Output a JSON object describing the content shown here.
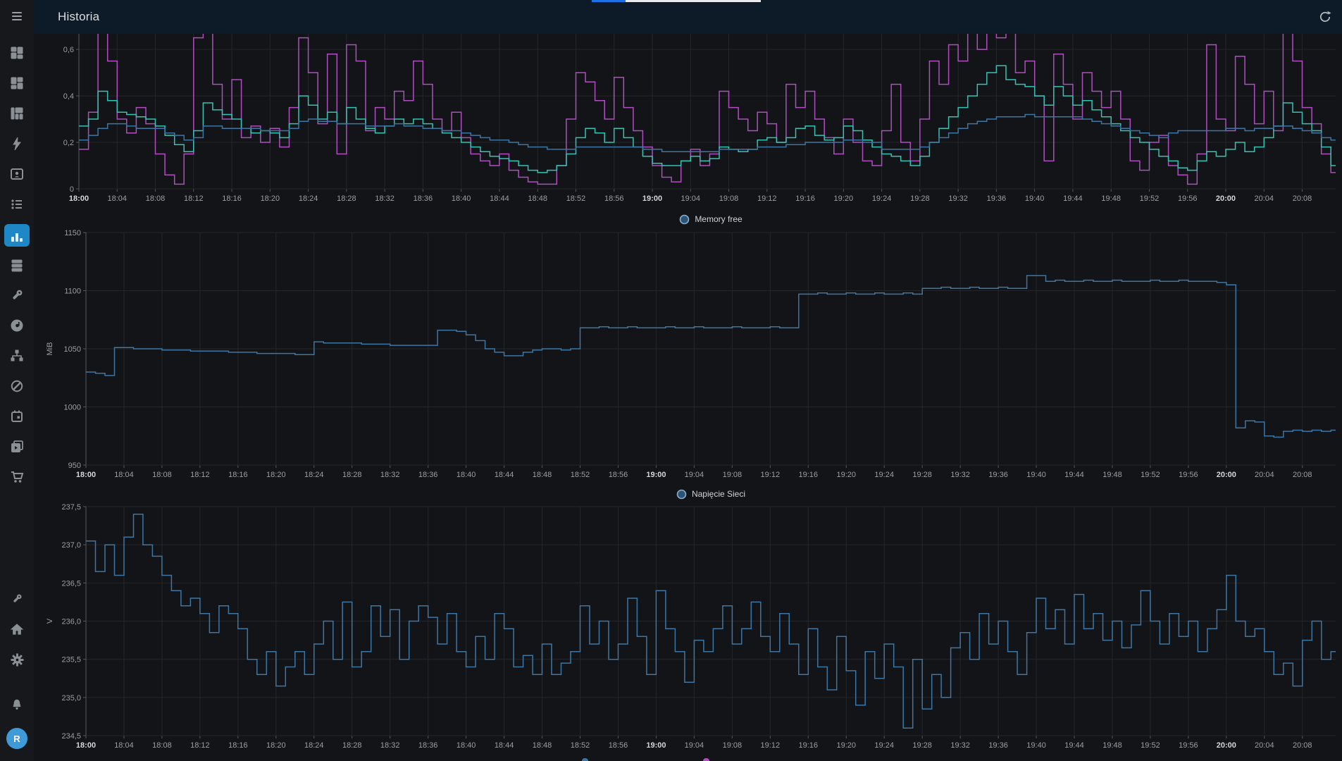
{
  "page": {
    "title": "Historia"
  },
  "user": {
    "initial": "R"
  },
  "colors": {
    "header_bg": "#0d1b28",
    "sidebar_bg": "#17181c",
    "content_bg": "#131418",
    "grid": "#242629",
    "axis": "#55595f",
    "text_dim": "#9a9fa5",
    "text_bright": "#d5d7d9",
    "series_purple": "#b04ebf",
    "series_cyan": "#35c3b4",
    "series_blue": "#3c76a5",
    "legend_circle_fill": "#2e5375",
    "legend_circle_stroke": "#83aed3",
    "active_item_bg": "#1e88c7",
    "avatar_bg": "#3f9bd8",
    "loadbar_blue": "#1a73e8",
    "loadbar_track": "#e8eaed"
  },
  "sidebar": {
    "icons": [
      "dashboard-grid-icon",
      "dashboard-grid-alt-icon",
      "panels-grid-icon",
      "lightning-icon",
      "user-card-icon",
      "bullet-list-icon",
      "bar-chart-icon-active",
      "server-stack-icon",
      "wrench-icon",
      "disc-icon",
      "sitemap-icon",
      "slash-circle-icon",
      "calendar-icon",
      "playlist-icon",
      "cart-icon",
      "tools-icon",
      "home-icon",
      "gear-icon",
      "bell-icon",
      "avatar"
    ]
  },
  "header": {
    "refresh_icon": "refresh"
  },
  "time_axis": {
    "total_minutes": 131.5,
    "ticks": [
      {
        "minute": 0,
        "label": "18:00",
        "bold": true
      },
      {
        "minute": 4,
        "label": "18:04",
        "bold": false
      },
      {
        "minute": 8,
        "label": "18:08",
        "bold": false
      },
      {
        "minute": 12,
        "label": "18:12",
        "bold": false
      },
      {
        "minute": 16,
        "label": "18:16",
        "bold": false
      },
      {
        "minute": 20,
        "label": "18:20",
        "bold": false
      },
      {
        "minute": 24,
        "label": "18:24",
        "bold": false
      },
      {
        "minute": 28,
        "label": "18:28",
        "bold": false
      },
      {
        "minute": 32,
        "label": "18:32",
        "bold": false
      },
      {
        "minute": 36,
        "label": "18:36",
        "bold": false
      },
      {
        "minute": 40,
        "label": "18:40",
        "bold": false
      },
      {
        "minute": 44,
        "label": "18:44",
        "bold": false
      },
      {
        "minute": 48,
        "label": "18:48",
        "bold": false
      },
      {
        "minute": 52,
        "label": "18:52",
        "bold": false
      },
      {
        "minute": 56,
        "label": "18:56",
        "bold": false
      },
      {
        "minute": 60,
        "label": "19:00",
        "bold": true
      },
      {
        "minute": 64,
        "label": "19:04",
        "bold": false
      },
      {
        "minute": 68,
        "label": "19:08",
        "bold": false
      },
      {
        "minute": 72,
        "label": "19:12",
        "bold": false
      },
      {
        "minute": 76,
        "label": "19:16",
        "bold": false
      },
      {
        "minute": 80,
        "label": "19:20",
        "bold": false
      },
      {
        "minute": 84,
        "label": "19:24",
        "bold": false
      },
      {
        "minute": 88,
        "label": "19:28",
        "bold": false
      },
      {
        "minute": 92,
        "label": "19:32",
        "bold": false
      },
      {
        "minute": 96,
        "label": "19:36",
        "bold": false
      },
      {
        "minute": 100,
        "label": "19:40",
        "bold": false
      },
      {
        "minute": 104,
        "label": "19:44",
        "bold": false
      },
      {
        "minute": 108,
        "label": "19:48",
        "bold": false
      },
      {
        "minute": 112,
        "label": "19:52",
        "bold": false
      },
      {
        "minute": 116,
        "label": "19:56",
        "bold": false
      },
      {
        "minute": 120,
        "label": "20:00",
        "bold": true
      },
      {
        "minute": 124,
        "label": "20:04",
        "bold": false
      },
      {
        "minute": 128,
        "label": "20:08",
        "bold": false
      }
    ]
  },
  "chart_data": [
    {
      "id": "load",
      "type": "line",
      "step": true,
      "sample_minutes": 1,
      "title": "",
      "xlabel": "",
      "ylabel": "",
      "y_axis": {
        "min": 0,
        "max": 0.667,
        "unit": "",
        "ticks": [
          {
            "value": 0,
            "label": "0"
          },
          {
            "value": 0.2,
            "label": "0,2"
          },
          {
            "value": 0.4,
            "label": "0,4"
          },
          {
            "value": 0.6,
            "label": "0,6"
          }
        ]
      },
      "series": [
        {
          "name": "series-purple",
          "color": "#b04ebf",
          "values": [
            0.17,
            0.33,
            0.72,
            0.55,
            0.3,
            0.24,
            0.35,
            0.28,
            0.15,
            0.06,
            0.02,
            0.15,
            0.65,
            0.72,
            0.45,
            0.3,
            0.47,
            0.22,
            0.27,
            0.2,
            0.26,
            0.18,
            0.35,
            0.65,
            0.5,
            0.28,
            0.58,
            0.15,
            0.62,
            0.55,
            0.25,
            0.35,
            0.3,
            0.42,
            0.38,
            0.55,
            0.45,
            0.3,
            0.25,
            0.33,
            0.22,
            0.15,
            0.12,
            0.1,
            0.15,
            0.08,
            0.05,
            0.03,
            0.02,
            0.02,
            0.1,
            0.3,
            0.5,
            0.46,
            0.38,
            0.3,
            0.48,
            0.35,
            0.25,
            0.18,
            0.1,
            0.05,
            0.03,
            0.12,
            0.17,
            0.1,
            0.15,
            0.42,
            0.35,
            0.3,
            0.25,
            0.33,
            0.28,
            0.2,
            0.45,
            0.35,
            0.42,
            0.3,
            0.22,
            0.15,
            0.3,
            0.2,
            0.12,
            0.1,
            0.25,
            0.45,
            0.2,
            0.12,
            0.3,
            0.55,
            0.45,
            0.62,
            0.55,
            0.68,
            0.6,
            0.72,
            0.65,
            0.72,
            0.5,
            0.55,
            0.4,
            0.12,
            0.58,
            0.45,
            0.3,
            0.5,
            0.42,
            0.35,
            0.42,
            0.3,
            0.12,
            0.08,
            0.2,
            0.23,
            0.1,
            0.06,
            0.02,
            0.15,
            0.62,
            0.3,
            0.25,
            0.57,
            0.45,
            0.28,
            0.42,
            0.25,
            0.72,
            0.55,
            0.35,
            0.28,
            0.15,
            0.07
          ]
        },
        {
          "name": "series-cyan",
          "color": "#35c3b4",
          "values": [
            0.27,
            0.3,
            0.42,
            0.38,
            0.33,
            0.32,
            0.31,
            0.3,
            0.27,
            0.23,
            0.19,
            0.16,
            0.25,
            0.37,
            0.34,
            0.32,
            0.3,
            0.26,
            0.24,
            0.25,
            0.24,
            0.22,
            0.28,
            0.4,
            0.36,
            0.3,
            0.33,
            0.28,
            0.35,
            0.3,
            0.26,
            0.24,
            0.27,
            0.3,
            0.28,
            0.3,
            0.28,
            0.26,
            0.24,
            0.22,
            0.2,
            0.18,
            0.16,
            0.14,
            0.13,
            0.12,
            0.1,
            0.08,
            0.07,
            0.08,
            0.1,
            0.15,
            0.22,
            0.26,
            0.24,
            0.2,
            0.26,
            0.22,
            0.18,
            0.14,
            0.11,
            0.1,
            0.1,
            0.12,
            0.14,
            0.12,
            0.13,
            0.18,
            0.17,
            0.16,
            0.17,
            0.21,
            0.22,
            0.2,
            0.22,
            0.26,
            0.27,
            0.23,
            0.21,
            0.22,
            0.27,
            0.25,
            0.21,
            0.18,
            0.15,
            0.14,
            0.12,
            0.1,
            0.14,
            0.2,
            0.26,
            0.31,
            0.35,
            0.4,
            0.45,
            0.5,
            0.53,
            0.47,
            0.45,
            0.44,
            0.4,
            0.36,
            0.44,
            0.4,
            0.36,
            0.38,
            0.34,
            0.31,
            0.28,
            0.25,
            0.22,
            0.2,
            0.17,
            0.14,
            0.12,
            0.09,
            0.08,
            0.12,
            0.16,
            0.14,
            0.17,
            0.2,
            0.16,
            0.18,
            0.22,
            0.27,
            0.37,
            0.33,
            0.28,
            0.25,
            0.18,
            0.1
          ]
        },
        {
          "name": "series-blue",
          "color": "#3c76a5",
          "values": [
            0.21,
            0.23,
            0.26,
            0.28,
            0.28,
            0.27,
            0.26,
            0.26,
            0.26,
            0.24,
            0.23,
            0.21,
            0.22,
            0.27,
            0.27,
            0.26,
            0.26,
            0.26,
            0.26,
            0.25,
            0.25,
            0.25,
            0.26,
            0.29,
            0.3,
            0.29,
            0.29,
            0.28,
            0.28,
            0.28,
            0.27,
            0.27,
            0.27,
            0.28,
            0.27,
            0.27,
            0.26,
            0.26,
            0.25,
            0.25,
            0.24,
            0.23,
            0.22,
            0.21,
            0.21,
            0.2,
            0.19,
            0.18,
            0.18,
            0.17,
            0.17,
            0.17,
            0.18,
            0.18,
            0.18,
            0.18,
            0.18,
            0.18,
            0.18,
            0.17,
            0.17,
            0.16,
            0.16,
            0.16,
            0.16,
            0.16,
            0.16,
            0.17,
            0.17,
            0.17,
            0.17,
            0.18,
            0.18,
            0.18,
            0.19,
            0.19,
            0.2,
            0.2,
            0.2,
            0.2,
            0.21,
            0.21,
            0.2,
            0.2,
            0.17,
            0.17,
            0.17,
            0.17,
            0.18,
            0.2,
            0.22,
            0.24,
            0.26,
            0.28,
            0.29,
            0.3,
            0.31,
            0.31,
            0.31,
            0.32,
            0.31,
            0.31,
            0.31,
            0.31,
            0.31,
            0.3,
            0.29,
            0.28,
            0.27,
            0.26,
            0.25,
            0.24,
            0.23,
            0.22,
            0.24,
            0.25,
            0.25,
            0.25,
            0.25,
            0.25,
            0.26,
            0.26,
            0.25,
            0.26,
            0.26,
            0.27,
            0.27,
            0.26,
            0.25,
            0.24,
            0.22,
            0.21
          ]
        }
      ]
    },
    {
      "id": "memory",
      "type": "line",
      "step": true,
      "sample_minutes": 1,
      "title": "",
      "xlabel": "",
      "ylabel": "MiB",
      "legend_label": "Memory free",
      "y_axis": {
        "min": 950,
        "max": 1150,
        "unit": "MiB",
        "ticks": [
          {
            "value": 950,
            "label": "950"
          },
          {
            "value": 1000,
            "label": "1000"
          },
          {
            "value": 1050,
            "label": "1050"
          },
          {
            "value": 1100,
            "label": "1100"
          },
          {
            "value": 1150,
            "label": "1150"
          }
        ]
      },
      "series": [
        {
          "name": "Memory free",
          "color": "#3c76a5",
          "values": [
            1030,
            1029,
            1027,
            1051,
            1051,
            1050,
            1050,
            1050,
            1049,
            1049,
            1049,
            1048,
            1048,
            1048,
            1048,
            1047,
            1047,
            1047,
            1046,
            1046,
            1046,
            1046,
            1045,
            1045,
            1056,
            1055,
            1055,
            1055,
            1055,
            1054,
            1054,
            1054,
            1053,
            1053,
            1053,
            1053,
            1053,
            1066,
            1066,
            1065,
            1062,
            1057,
            1050,
            1047,
            1044,
            1044,
            1047,
            1049,
            1050,
            1050,
            1049,
            1050,
            1068,
            1068,
            1069,
            1068,
            1068,
            1069,
            1068,
            1068,
            1068,
            1069,
            1068,
            1068,
            1069,
            1068,
            1068,
            1068,
            1069,
            1068,
            1068,
            1068,
            1069,
            1068,
            1068,
            1097,
            1097,
            1098,
            1097,
            1097,
            1098,
            1097,
            1097,
            1098,
            1097,
            1097,
            1098,
            1097,
            1102,
            1102,
            1103,
            1102,
            1102,
            1103,
            1102,
            1102,
            1103,
            1102,
            1102,
            1113,
            1113,
            1108,
            1109,
            1108,
            1108,
            1109,
            1108,
            1108,
            1109,
            1108,
            1108,
            1108,
            1109,
            1108,
            1108,
            1109,
            1108,
            1108,
            1108,
            1107,
            1105,
            982,
            988,
            987,
            975,
            974,
            979,
            980,
            979,
            980,
            979,
            980
          ]
        }
      ]
    },
    {
      "id": "voltage",
      "type": "line",
      "step": true,
      "sample_minutes": 1,
      "title": "",
      "xlabel": "",
      "ylabel": "V",
      "legend_label": "Napięcie Sieci",
      "y_axis": {
        "min": 234.5,
        "max": 237.5,
        "unit": "V",
        "ticks": [
          {
            "value": 234.5,
            "label": "234,5"
          },
          {
            "value": 235.0,
            "label": "235,0"
          },
          {
            "value": 235.5,
            "label": "235,5"
          },
          {
            "value": 236.0,
            "label": "236,0"
          },
          {
            "value": 236.5,
            "label": "236,5"
          },
          {
            "value": 237.0,
            "label": "237,0"
          },
          {
            "value": 237.5,
            "label": "237,5"
          }
        ]
      },
      "series": [
        {
          "name": "Napięcie Sieci",
          "color": "#3c76a5",
          "values": [
            237.05,
            236.65,
            237.0,
            236.6,
            237.1,
            237.4,
            237.0,
            236.85,
            236.6,
            236.4,
            236.2,
            236.3,
            236.1,
            235.85,
            236.2,
            236.1,
            235.9,
            235.5,
            235.3,
            235.6,
            235.15,
            235.4,
            235.6,
            235.3,
            235.7,
            236.0,
            235.5,
            236.25,
            235.4,
            235.6,
            236.2,
            235.8,
            236.15,
            235.5,
            236.0,
            236.2,
            236.05,
            235.7,
            236.1,
            235.6,
            235.4,
            235.8,
            235.5,
            236.1,
            235.9,
            235.4,
            235.55,
            235.3,
            235.7,
            235.3,
            235.45,
            235.6,
            236.2,
            235.7,
            236.0,
            235.5,
            235.7,
            236.3,
            235.8,
            235.3,
            236.4,
            235.9,
            235.6,
            235.2,
            235.75,
            235.6,
            235.9,
            236.2,
            235.7,
            235.9,
            236.25,
            235.8,
            235.6,
            236.1,
            235.7,
            235.3,
            235.9,
            235.4,
            235.1,
            235.8,
            235.35,
            234.9,
            235.6,
            235.25,
            235.7,
            235.4,
            234.6,
            235.5,
            234.85,
            235.3,
            235.0,
            235.65,
            235.85,
            235.5,
            236.1,
            235.7,
            236.0,
            235.6,
            235.3,
            235.85,
            236.3,
            235.9,
            236.15,
            235.7,
            236.35,
            235.9,
            236.1,
            235.75,
            236.0,
            235.65,
            235.95,
            236.4,
            236.0,
            235.7,
            236.1,
            235.8,
            236.0,
            235.6,
            235.9,
            236.15,
            236.6,
            236.0,
            235.8,
            235.9,
            235.6,
            235.3,
            235.45,
            235.15,
            235.75,
            236.0,
            235.5,
            235.6
          ]
        }
      ]
    }
  ]
}
